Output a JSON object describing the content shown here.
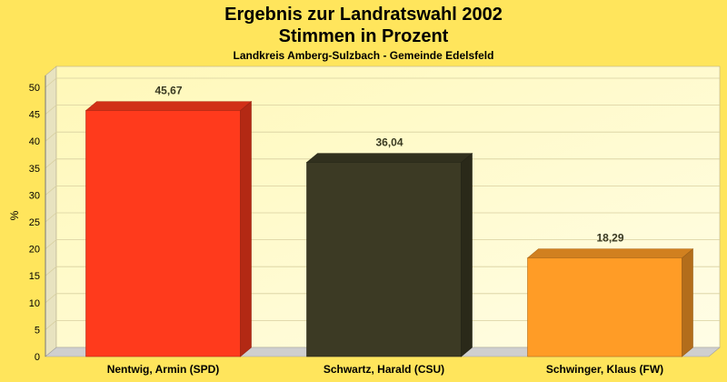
{
  "chart_data": {
    "type": "bar",
    "title": "Ergebnis zur Landratswahl 2002",
    "title2": "Stimmen in Prozent",
    "subtitle": "Landkreis Amberg-Sulzbach - Gemeinde Edelsfeld",
    "ylabel": "%",
    "ylim": [
      0,
      50
    ],
    "yticks": [
      0,
      5,
      10,
      15,
      20,
      25,
      30,
      35,
      40,
      45,
      50
    ],
    "grid": true,
    "categories": [
      "Nentwig, Armin (SPD)",
      "Schwartz, Harald (CSU)",
      "Schwinger, Klaus (FW)"
    ],
    "values": [
      45.67,
      36.04,
      18.29
    ],
    "value_labels": [
      "45,67",
      "36,04",
      "18,29"
    ],
    "colors": [
      "#ff3a1c",
      "#3c3a24",
      "#ff9c26"
    ]
  }
}
